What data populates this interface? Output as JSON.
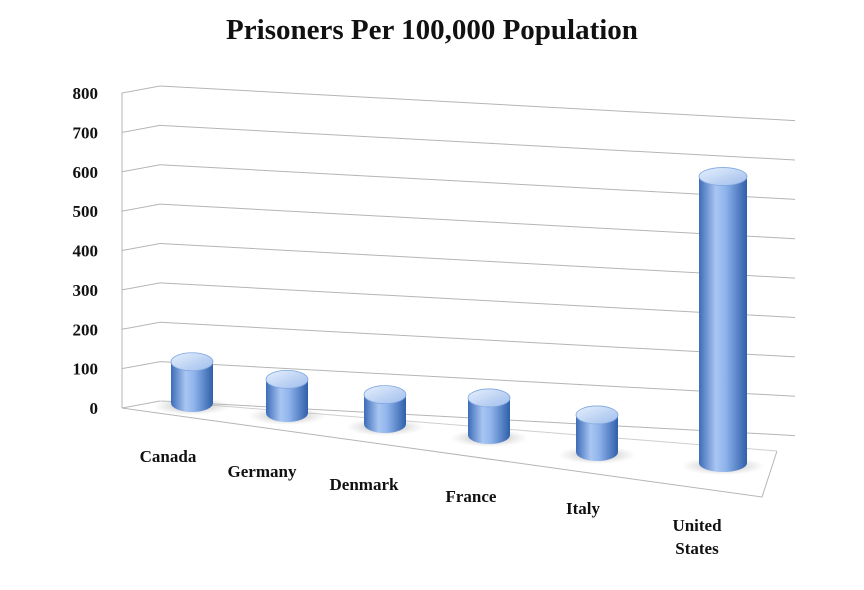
{
  "chart_data": {
    "type": "bar",
    "title": "Prisoners Per 100,000 Population",
    "categories": [
      "Canada",
      "Germany",
      "Denmark",
      "France",
      "Italy",
      "United States"
    ],
    "category_lines": [
      [
        "Canada"
      ],
      [
        "Germany"
      ],
      [
        "Denmark"
      ],
      [
        "France"
      ],
      [
        "Italy"
      ],
      [
        "United",
        "States"
      ]
    ],
    "values": [
      108,
      88,
      77,
      97,
      97,
      750
    ],
    "yticks": [
      "0",
      "100",
      "200",
      "300",
      "400",
      "500",
      "600",
      "700",
      "800"
    ],
    "ylim": [
      0,
      800
    ],
    "xlabel": "",
    "ylabel": "",
    "grid": true,
    "style": "3d-cylinder",
    "colors": {
      "bar_light": "#c6d9f7",
      "bar_mid": "#6f9fe0",
      "bar_dark": "#2f5faa"
    }
  }
}
